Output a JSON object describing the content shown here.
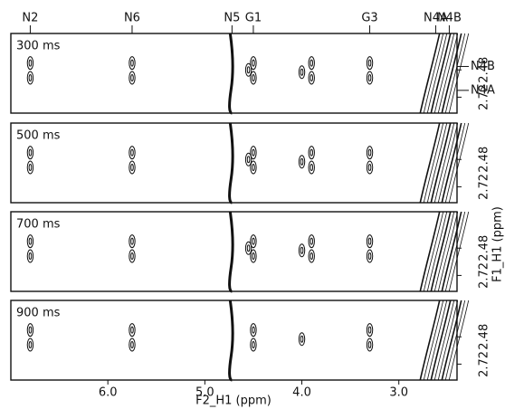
{
  "chart_data": {
    "type": "contour",
    "xlabel": "F2_H1 (ppm)",
    "ylabel": "F1_H1 (ppm)",
    "xlim": [
      7.0,
      2.4
    ],
    "xticks": [
      {
        "value": 6,
        "label": "6.0"
      },
      {
        "value": 5,
        "label": "5.0"
      },
      {
        "value": 4,
        "label": "4.0"
      },
      {
        "value": 3,
        "label": "3.0"
      }
    ],
    "ylim": [
      2.16,
      2.86
    ],
    "yticks": [
      2.48,
      2.72
    ],
    "annotations": [
      {
        "label": "N2",
        "x": 6.8
      },
      {
        "label": "N6",
        "x": 5.75
      },
      {
        "label": "N5",
        "x": 4.72
      },
      {
        "label": "G1",
        "x": 4.5
      },
      {
        "label": "G3",
        "x": 3.3
      },
      {
        "label": "N4A",
        "x": 2.62
      },
      {
        "label": "N4B",
        "x": 2.48
      }
    ],
    "side_labels": [
      {
        "label": "N4B",
        "y": 2.45
      },
      {
        "label": "N4A",
        "y": 2.66
      }
    ],
    "panels": [
      {
        "label": "300 ms",
        "peaks": {
          "x": [
            6.8,
            6.8,
            5.75,
            5.75,
            4.55,
            4.5,
            4.5,
            4.0,
            3.9,
            3.9,
            3.3,
            3.3
          ],
          "y": [
            2.42,
            2.55,
            2.42,
            2.55,
            2.48,
            2.42,
            2.55,
            2.5,
            2.42,
            2.55,
            2.42,
            2.55
          ]
        }
      },
      {
        "label": "500 ms",
        "peaks": {
          "x": [
            6.8,
            6.8,
            5.75,
            5.75,
            4.55,
            4.5,
            4.5,
            4.0,
            3.9,
            3.9,
            3.3,
            3.3
          ],
          "y": [
            2.42,
            2.55,
            2.42,
            2.55,
            2.48,
            2.42,
            2.55,
            2.5,
            2.42,
            2.55,
            2.42,
            2.55
          ]
        }
      },
      {
        "label": "700 ms",
        "peaks": {
          "x": [
            6.8,
            6.8,
            5.75,
            5.75,
            4.55,
            4.5,
            4.5,
            4.0,
            3.9,
            3.9,
            3.3,
            3.3
          ],
          "y": [
            2.42,
            2.55,
            2.42,
            2.55,
            2.48,
            2.42,
            2.55,
            2.5,
            2.42,
            2.55,
            2.42,
            2.55
          ]
        }
      },
      {
        "label": "900 ms",
        "peaks": {
          "x": [
            6.8,
            6.8,
            5.75,
            5.75,
            4.5,
            4.5,
            4.0,
            3.3,
            3.3
          ],
          "y": [
            2.42,
            2.55,
            2.42,
            2.55,
            2.42,
            2.55,
            2.5,
            2.42,
            2.55
          ]
        }
      }
    ]
  }
}
